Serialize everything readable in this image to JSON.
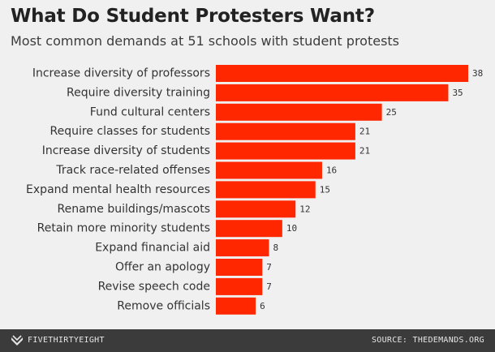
{
  "header": {
    "title": "What Do Student Protesters Want?",
    "subtitle": "Most common demands at 51 schools with student protests"
  },
  "footer": {
    "brand": "FIVETHIRTYEIGHT",
    "source": "SOURCE: THEDEMANDS.ORG"
  },
  "colors": {
    "bar": "#ff2700",
    "background": "#f0f0f0",
    "footer": "#3b3b3b"
  },
  "chart_data": {
    "type": "bar",
    "orientation": "horizontal",
    "title": "What Do Student Protesters Want?",
    "subtitle": "Most common demands at 51 schools with student protests",
    "xlabel": "",
    "ylabel": "",
    "xlim": [
      0,
      38
    ],
    "grid": false,
    "legend": "none",
    "categories": [
      "Increase diversity of professors",
      "Require diversity training",
      "Fund cultural centers",
      "Require classes for students",
      "Increase diversity of students",
      "Track race-related offenses",
      "Expand mental health resources",
      "Rename buildings/mascots",
      "Retain more minority students",
      "Expand financial aid",
      "Offer an apology",
      "Revise speech code",
      "Remove officials"
    ],
    "values": [
      38,
      35,
      25,
      21,
      21,
      16,
      15,
      12,
      10,
      8,
      7,
      7,
      6
    ]
  }
}
